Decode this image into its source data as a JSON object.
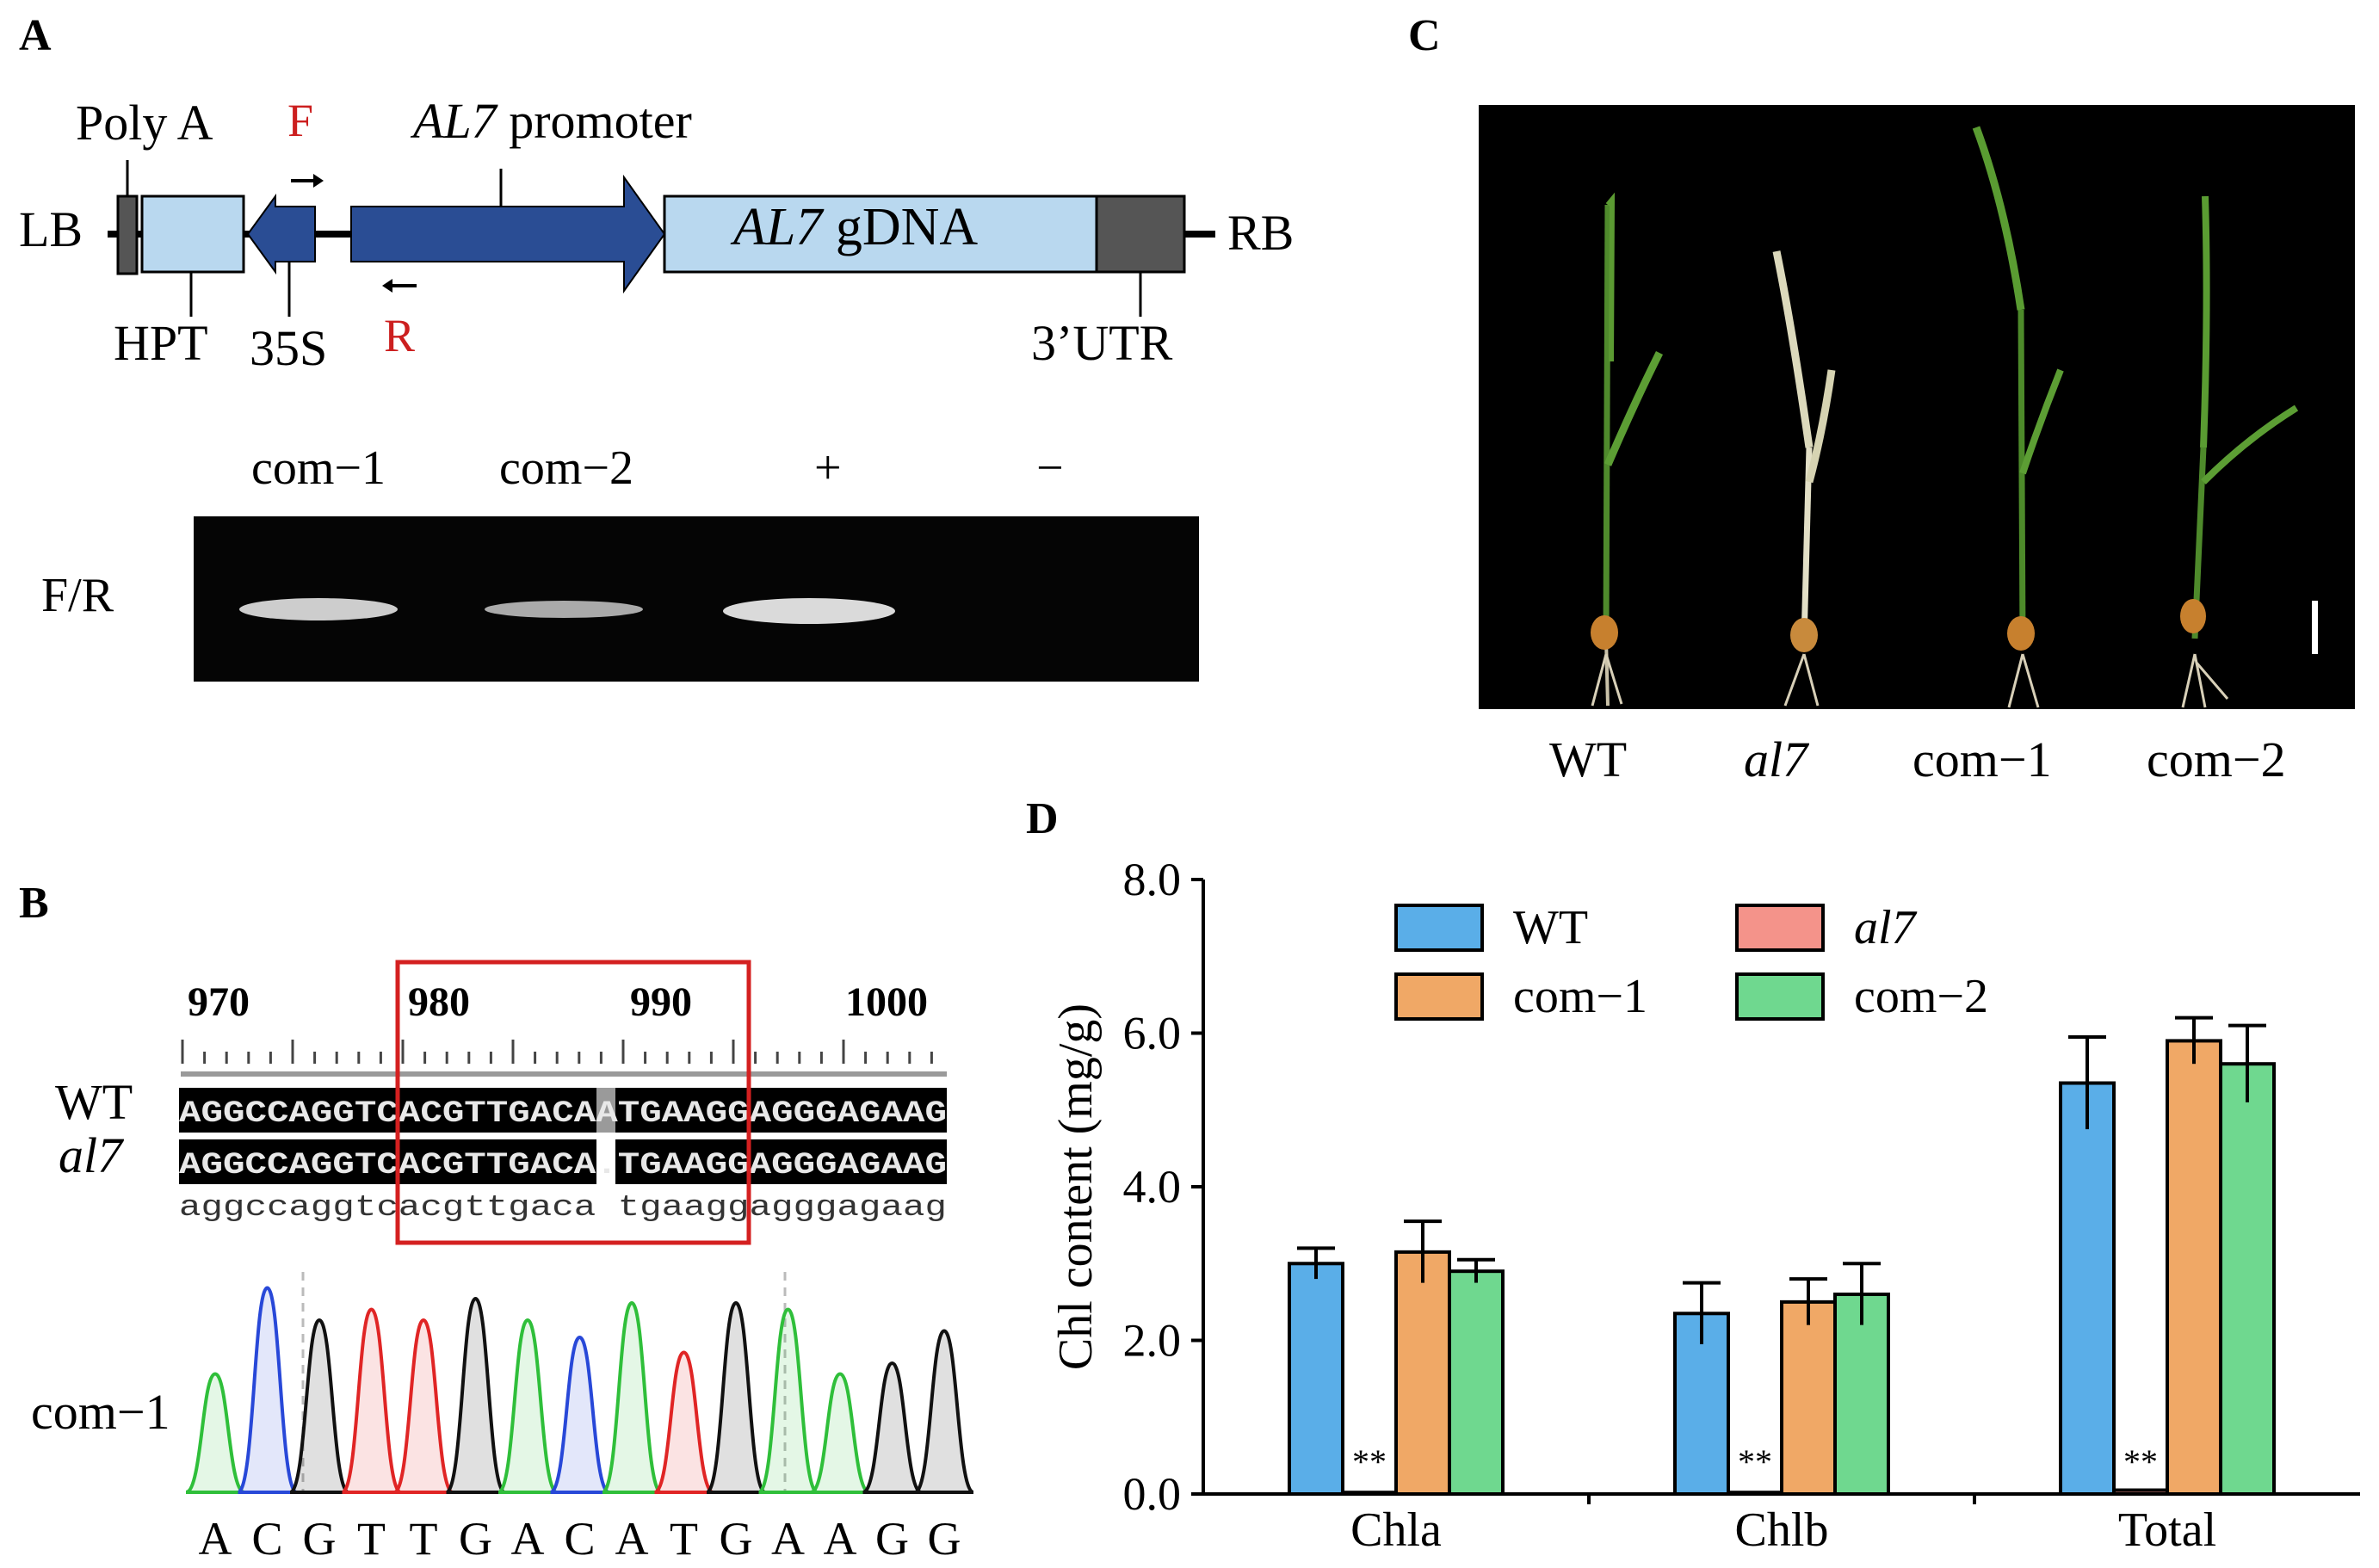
{
  "panels": {
    "a": "A",
    "b": "B",
    "c": "C",
    "d": "D"
  },
  "panel_a": {
    "poly_a": "Poly A",
    "f_primer": "F",
    "r_primer": "R",
    "promoter_italic": "AL7",
    "promoter_text": " promoter",
    "lb": "LB",
    "rb": "RB",
    "gdna_italic": "AL7",
    "gdna_text": " gDNA",
    "hpt": "HPT",
    "s35": "35S",
    "utr": "3’UTR",
    "gel_lanes": [
      "com−1",
      "com−2",
      "+",
      "−"
    ],
    "gel_row_label": "F/R"
  },
  "panel_b": {
    "ruler_ticks": [
      "970",
      "980",
      "990",
      "1000"
    ],
    "wt_label": "WT",
    "al7_label": "al7",
    "wt_seq": "AGGCCAGGTCACGTTGACAATGAAGGAGGGAGAAG",
    "al7_seq": "AGGCCAGGTCACGTTGACA.TGAAGGAGGGAGAAG",
    "consensus_seq": "aggccaggtcacgttgaca tgaaggagggagaag",
    "chrom_label": "com−1",
    "chrom_bases": [
      "A",
      "C",
      "G",
      "T",
      "T",
      "G",
      "A",
      "C",
      "A",
      "T",
      "G",
      "A",
      "A",
      "G",
      "G"
    ]
  },
  "panel_c": {
    "plant_labels": [
      "WT",
      "al7",
      "com−1",
      "com−2"
    ]
  },
  "chart_data": {
    "type": "bar",
    "title": "",
    "xlabel": "",
    "ylabel": "Chl content (mg/g)",
    "categories": [
      "Chla",
      "Chlb",
      "Total"
    ],
    "ylim": [
      0,
      8
    ],
    "yticks": [
      "0.0",
      "2.0",
      "4.0",
      "6.0",
      "8.0"
    ],
    "legend": "top-left",
    "series": [
      {
        "name": "WT",
        "color": "#5aaee8",
        "values": [
          3.0,
          2.35,
          5.35
        ],
        "errors": [
          0.2,
          0.4,
          0.6
        ]
      },
      {
        "name": "al7",
        "color": "#f4938a",
        "values": [
          0.02,
          0.02,
          0.05
        ],
        "errors": [
          0,
          0,
          0
        ],
        "annotation": "**"
      },
      {
        "name": "com−1",
        "color": "#f0a866",
        "values": [
          3.15,
          2.5,
          5.9
        ],
        "errors": [
          0.4,
          0.3,
          0.3
        ]
      },
      {
        "name": "com−2",
        "color": "#6fd88f",
        "values": [
          2.9,
          2.6,
          5.6
        ],
        "errors": [
          0.15,
          0.4,
          0.5
        ]
      }
    ]
  },
  "colors": {
    "dark_blue": "#2a4d94",
    "light_blue": "#b9d8ef",
    "gray_box": "#555555",
    "red_box": "#d42020",
    "chrom_green": "#2fbf3a",
    "chrom_blue": "#2848d8",
    "chrom_black": "#111111",
    "chrom_red": "#e02525"
  }
}
